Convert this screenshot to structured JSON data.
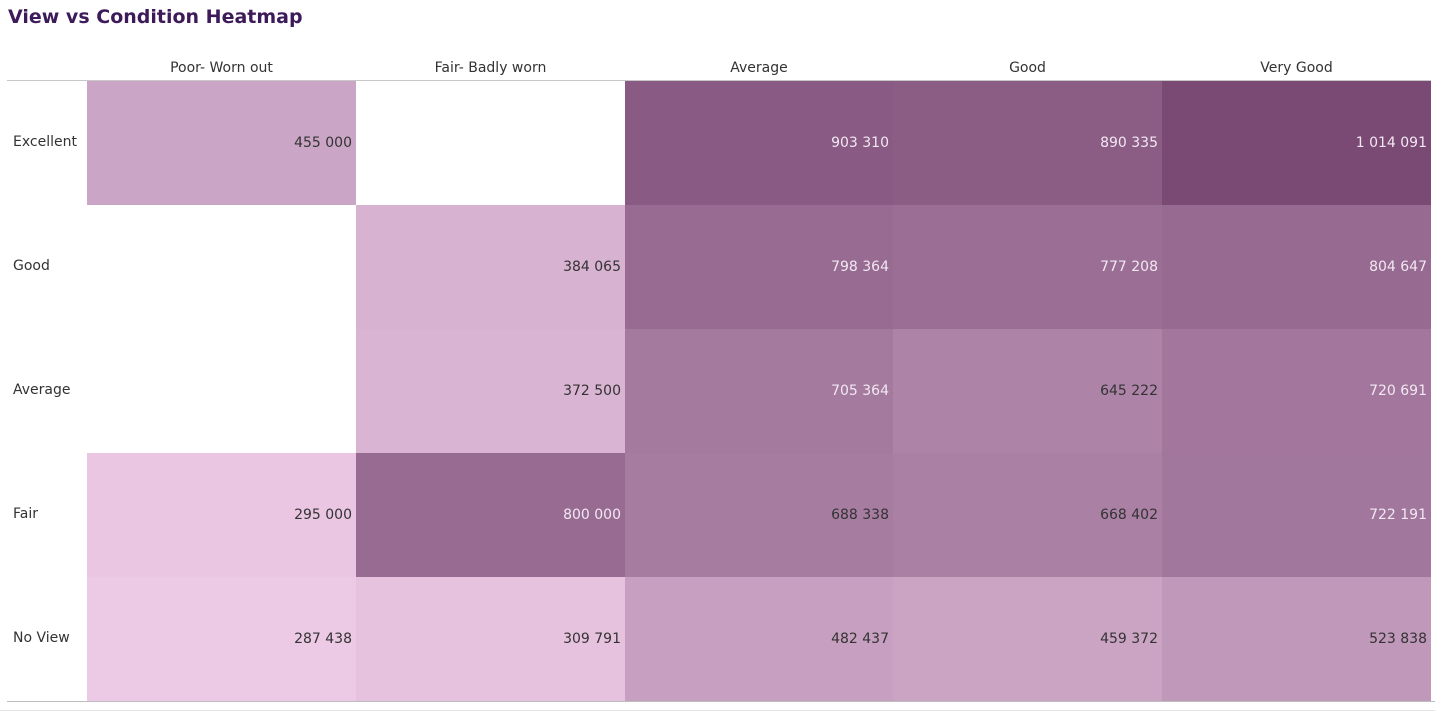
{
  "chart_data": {
    "type": "heatmap",
    "title": "View vs Condition Heatmap",
    "columns": [
      "Poor- Worn out",
      "Fair- Badly worn",
      "Average",
      "Good",
      "Very Good"
    ],
    "rows": [
      "Excellent",
      "Good",
      "Average",
      "Fair",
      "No View"
    ],
    "values": [
      [
        455000,
        null,
        903310,
        890335,
        1014091
      ],
      [
        null,
        384065,
        798364,
        777208,
        804647
      ],
      [
        null,
        372500,
        705364,
        645222,
        720691
      ],
      [
        295000,
        800000,
        688338,
        668402,
        722191
      ],
      [
        287438,
        309791,
        482437,
        459372,
        523838
      ]
    ],
    "labels": [
      [
        "455 000",
        "",
        "903 310",
        "890 335",
        "1 014 091"
      ],
      [
        "",
        "384 065",
        "798 364",
        "777 208",
        "804 647"
      ],
      [
        "",
        "372 500",
        "705 364",
        "645 222",
        "720 691"
      ],
      [
        "295 000",
        "800 000",
        "688 338",
        "668 402",
        "722 191"
      ],
      [
        "287 438",
        "309 791",
        "482 437",
        "459 372",
        "523 838"
      ]
    ],
    "color_low": "#ecc9e5",
    "color_high": "#7a4a75"
  }
}
